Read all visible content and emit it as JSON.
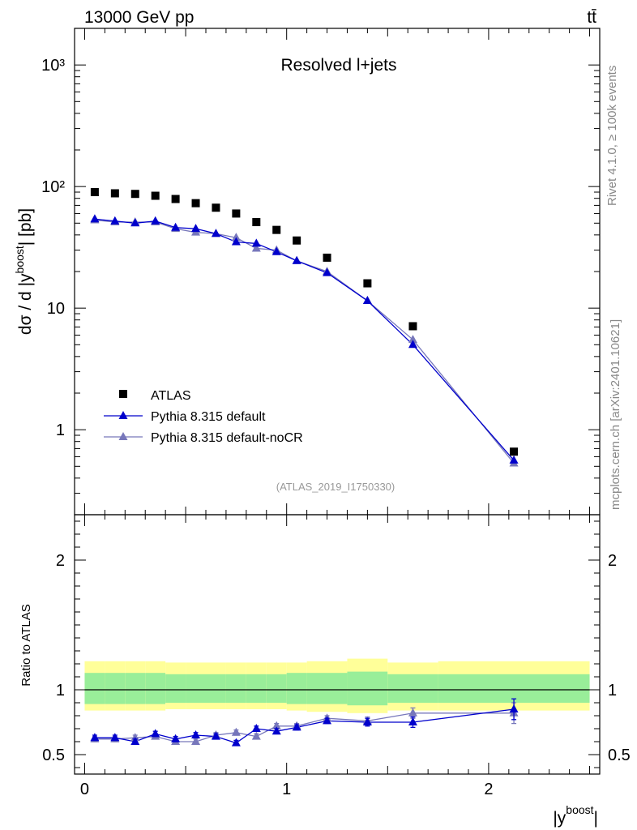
{
  "chart_data": {
    "type": "scatter",
    "header_left": "13000 GeV pp",
    "header_right": "tt̄",
    "title": "Resolved l+jets",
    "ylabel_main": "dσ / d |y{boost}| [pb]",
    "ylabel_ratio": "Ratio to ATLAS",
    "xlabel": "|y{boost}|",
    "side_label_top": "Rivet 4.1.0, ≥ 100k events",
    "side_label_bottom": "mcplots.cern.ch [arXiv:2401.10621]",
    "analysis_id": "(ATLAS_2019_I1750330)",
    "xlim": [
      -0.05,
      2.55
    ],
    "ylim_main": [
      0.2,
      2000
    ],
    "ylim_ratio": [
      0.35,
      2.35
    ],
    "x_ticks": [
      0,
      1,
      2
    ],
    "y_ticks_main": [
      {
        "v": 1,
        "label": "1"
      },
      {
        "v": 10,
        "label": "10"
      },
      {
        "v": 100,
        "label": "10²"
      },
      {
        "v": 1000,
        "label": "10³"
      }
    ],
    "y_ticks_ratio": [
      {
        "v": 0.5,
        "label": "0.5"
      },
      {
        "v": 1,
        "label": "1"
      },
      {
        "v": 2,
        "label": "2"
      }
    ],
    "bin_edges": [
      0,
      0.1,
      0.2,
      0.3,
      0.4,
      0.5,
      0.6,
      0.7,
      0.8,
      0.9,
      1.0,
      1.1,
      1.3,
      1.5,
      1.75,
      2.5
    ],
    "x": [
      0.05,
      0.15,
      0.25,
      0.35,
      0.45,
      0.55,
      0.65,
      0.75,
      0.85,
      0.95,
      1.05,
      1.2,
      1.4,
      1.625,
      2.125
    ],
    "legend": [
      {
        "label": "ATLAS",
        "color": "#000000",
        "marker": "square"
      },
      {
        "label": "Pythia 8.315 default",
        "color": "#0000cc",
        "marker": "triangle"
      },
      {
        "label": "Pythia 8.315 default-noCR",
        "color": "#7777bb",
        "marker": "triangle"
      }
    ],
    "series": [
      {
        "name": "ATLAS",
        "values": [
          90,
          88,
          87,
          84,
          79,
          73,
          67,
          60,
          51,
          44,
          36,
          26,
          16,
          7.1,
          0.66
        ]
      },
      {
        "name": "Pythia 8.315 default",
        "values": [
          54,
          52,
          50,
          52,
          46,
          45,
          41,
          35,
          34,
          29,
          24.5,
          19.5,
          11.5,
          5.0,
          0.56
        ]
      },
      {
        "name": "Pythia 8.315 default-noCR",
        "values": [
          53,
          51,
          51,
          51,
          45,
          42,
          41,
          38,
          31,
          30,
          24.5,
          20,
          11.5,
          5.5,
          0.53
        ]
      }
    ],
    "ratio_series": [
      {
        "name": "Pythia 8.315 default",
        "values": [
          0.63,
          0.63,
          0.6,
          0.66,
          0.62,
          0.65,
          0.64,
          0.59,
          0.7,
          0.68,
          0.71,
          0.76,
          0.75,
          0.75,
          0.85
        ],
        "errors": [
          0.02,
          0.02,
          0.02,
          0.02,
          0.02,
          0.02,
          0.02,
          0.02,
          0.02,
          0.02,
          0.02,
          0.02,
          0.03,
          0.04,
          0.08
        ]
      },
      {
        "name": "Pythia 8.315 default-noCR",
        "values": [
          0.62,
          0.62,
          0.63,
          0.64,
          0.6,
          0.6,
          0.65,
          0.67,
          0.64,
          0.72,
          0.72,
          0.78,
          0.76,
          0.82,
          0.82
        ],
        "errors": [
          0.02,
          0.02,
          0.02,
          0.02,
          0.02,
          0.02,
          0.02,
          0.02,
          0.02,
          0.02,
          0.02,
          0.02,
          0.03,
          0.04,
          0.08
        ]
      }
    ],
    "band_inner": [
      [
        0.89,
        1.13
      ],
      [
        0.89,
        1.13
      ],
      [
        0.89,
        1.13
      ],
      [
        0.89,
        1.13
      ],
      [
        0.9,
        1.12
      ],
      [
        0.9,
        1.12
      ],
      [
        0.9,
        1.12
      ],
      [
        0.9,
        1.12
      ],
      [
        0.9,
        1.12
      ],
      [
        0.9,
        1.12
      ],
      [
        0.89,
        1.13
      ],
      [
        0.89,
        1.13
      ],
      [
        0.88,
        1.14
      ],
      [
        0.9,
        1.12
      ],
      [
        0.9,
        1.12
      ]
    ],
    "band_outer": [
      [
        0.84,
        1.22
      ],
      [
        0.84,
        1.22
      ],
      [
        0.84,
        1.22
      ],
      [
        0.84,
        1.22
      ],
      [
        0.85,
        1.21
      ],
      [
        0.85,
        1.21
      ],
      [
        0.85,
        1.21
      ],
      [
        0.85,
        1.21
      ],
      [
        0.85,
        1.21
      ],
      [
        0.85,
        1.21
      ],
      [
        0.84,
        1.21
      ],
      [
        0.83,
        1.22
      ],
      [
        0.82,
        1.24
      ],
      [
        0.84,
        1.21
      ],
      [
        0.84,
        1.22
      ]
    ],
    "colors": {
      "band_inner": "#99ee99",
      "band_outer": "#ffff99",
      "side_label": "#888888"
    }
  }
}
